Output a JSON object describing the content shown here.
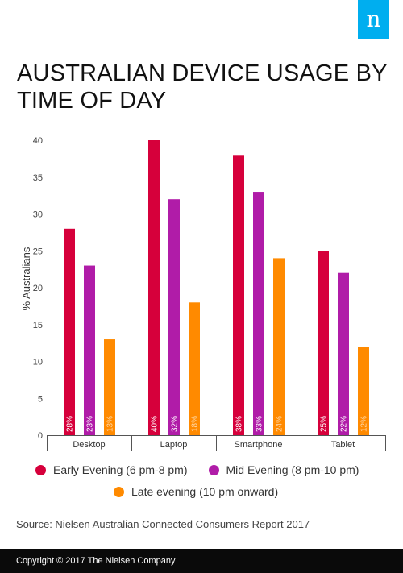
{
  "brand": {
    "logo_letter": "n",
    "logo_color": "#00aeef"
  },
  "header": {
    "title": "AUSTRALIAN DEVICE USAGE BY TIME OF DAY"
  },
  "chart_data": {
    "type": "bar",
    "ylabel": "% Australians",
    "xlabel": "",
    "ylim": [
      0,
      40
    ],
    "yticks": [
      0,
      5,
      10,
      15,
      20,
      25,
      30,
      35,
      40
    ],
    "categories": [
      "Desktop",
      "Laptop",
      "Smartphone",
      "Tablet"
    ],
    "series": [
      {
        "name": "Early Evening (6 pm-8 pm)",
        "color": "#d6003b",
        "values": [
          28,
          40,
          38,
          25
        ],
        "labels": [
          "28%",
          "40%",
          "38%",
          "25%"
        ]
      },
      {
        "name": "Mid Evening (8 pm-10 pm)",
        "color": "#b01ca8",
        "values": [
          23,
          32,
          33,
          22
        ],
        "labels": [
          "23%",
          "32%",
          "33%",
          "22%"
        ]
      },
      {
        "name": "Late evening (10 pm onward)",
        "color": "#ff8a00",
        "values": [
          13,
          18,
          24,
          12
        ],
        "labels": [
          "13%",
          "18%",
          "24%",
          "12%"
        ]
      }
    ],
    "grid": false,
    "legend_position": "bottom"
  },
  "source": "Source: Nielsen Australian Connected Consumers Report 2017",
  "footer": {
    "copyright": "Copyright © 2017 The Nielsen Company"
  }
}
